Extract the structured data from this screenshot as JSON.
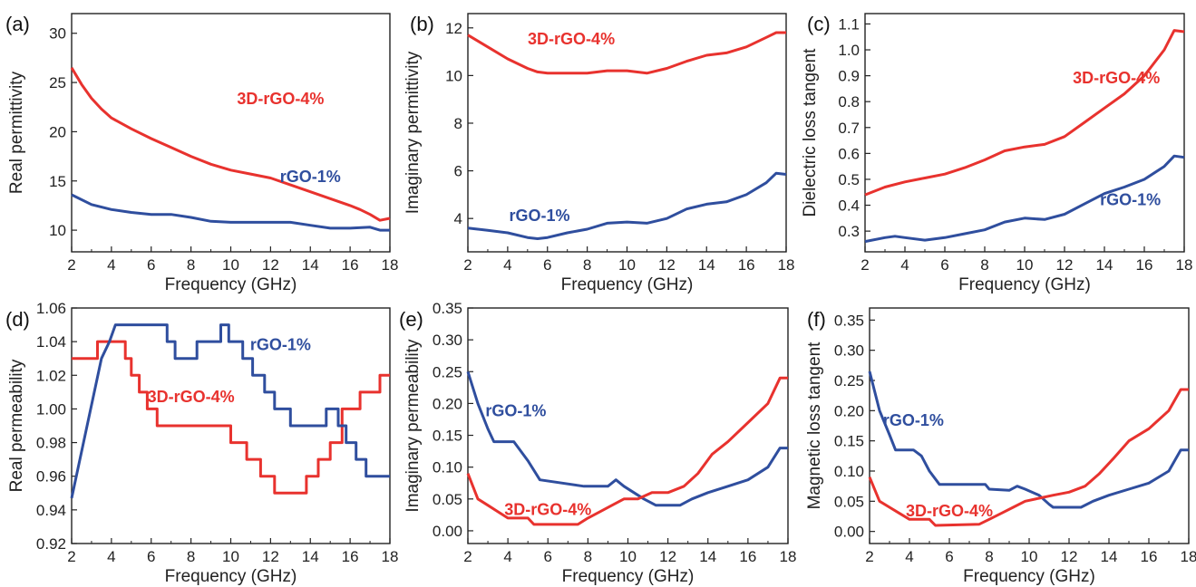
{
  "colors": {
    "red": "#e8322e",
    "blue": "#2f4e9e",
    "axis": "#222222"
  },
  "chart_data": [
    {
      "type": "line",
      "panel": "(a)",
      "xlabel": "Frequency (GHz)",
      "ylabel": "Real permittivity",
      "xlim": [
        2,
        18
      ],
      "ylim": [
        7.8,
        32
      ],
      "xticks": [
        2,
        4,
        6,
        8,
        10,
        12,
        14,
        16,
        18
      ],
      "xtick_labels": [
        "2",
        "4",
        "6",
        "8",
        "10",
        "12",
        "14",
        "16",
        "18"
      ],
      "yticks": [
        10,
        15,
        20,
        25,
        30
      ],
      "ytick_labels": [
        "10",
        "15",
        "20",
        "25",
        "30"
      ],
      "series": [
        {
          "name": "3D-rGO-4%",
          "color": "#e8322e",
          "x": [
            2,
            2.5,
            3,
            3.5,
            4,
            5,
            6,
            7,
            8,
            9,
            10,
            11,
            12,
            13,
            14,
            15,
            16,
            16.5,
            17,
            17.5,
            18
          ],
          "y": [
            26.5,
            24.8,
            23.4,
            22.3,
            21.4,
            20.3,
            19.3,
            18.4,
            17.5,
            16.7,
            16.1,
            15.7,
            15.3,
            14.6,
            13.9,
            13.2,
            12.5,
            12.1,
            11.6,
            11.0,
            11.2
          ]
        },
        {
          "name": "rGO-1%",
          "color": "#2f4e9e",
          "x": [
            2,
            3,
            4,
            5,
            6,
            7,
            8,
            9,
            10,
            11,
            12,
            13,
            14,
            15,
            16,
            17,
            17.5,
            18
          ],
          "y": [
            13.6,
            12.6,
            12.1,
            11.8,
            11.6,
            11.6,
            11.3,
            10.9,
            10.8,
            10.8,
            10.8,
            10.8,
            10.5,
            10.2,
            10.2,
            10.3,
            10.0,
            10.0
          ]
        }
      ]
    },
    {
      "type": "line",
      "panel": "(b)",
      "xlabel": "Frequency (GHz)",
      "ylabel": "Imaginary permittivity",
      "xlim": [
        2,
        18
      ],
      "ylim": [
        2.6,
        12.6
      ],
      "xticks": [
        2,
        4,
        6,
        8,
        10,
        12,
        14,
        16,
        18
      ],
      "xtick_labels": [
        "2",
        "4",
        "6",
        "8",
        "10",
        "12",
        "14",
        "16",
        "18"
      ],
      "yticks": [
        4,
        6,
        8,
        10,
        12
      ],
      "ytick_labels": [
        "4",
        "6",
        "8",
        "10",
        "12"
      ],
      "series": [
        {
          "name": "3D-rGO-4%",
          "color": "#e8322e",
          "x": [
            2,
            3,
            4,
            5,
            5.5,
            6,
            7,
            8,
            9,
            10,
            11,
            12,
            13,
            14,
            15,
            16,
            17,
            17.5,
            18
          ],
          "y": [
            11.7,
            11.2,
            10.7,
            10.3,
            10.15,
            10.1,
            10.1,
            10.1,
            10.2,
            10.2,
            10.1,
            10.3,
            10.6,
            10.85,
            10.95,
            11.2,
            11.6,
            11.8,
            11.8
          ]
        },
        {
          "name": "rGO-1%",
          "color": "#2f4e9e",
          "x": [
            2,
            3,
            4,
            5,
            5.5,
            6,
            7,
            8,
            9,
            10,
            11,
            12,
            13,
            14,
            15,
            16,
            17,
            17.5,
            18
          ],
          "y": [
            3.6,
            3.5,
            3.4,
            3.2,
            3.15,
            3.2,
            3.4,
            3.55,
            3.8,
            3.85,
            3.8,
            4.0,
            4.4,
            4.6,
            4.7,
            5.0,
            5.5,
            5.9,
            5.85
          ]
        }
      ]
    },
    {
      "type": "line",
      "panel": "(c)",
      "xlabel": "Frequency (GHz)",
      "ylabel": "Dielectric loss tangent",
      "xlim": [
        2,
        18
      ],
      "ylim": [
        0.22,
        1.14
      ],
      "xticks": [
        2,
        4,
        6,
        8,
        10,
        12,
        14,
        16,
        18
      ],
      "xtick_labels": [
        "2",
        "4",
        "6",
        "8",
        "10",
        "12",
        "14",
        "16",
        "18"
      ],
      "yticks": [
        0.3,
        0.4,
        0.5,
        0.6,
        0.7,
        0.8,
        0.9,
        1.0,
        1.1
      ],
      "ytick_labels": [
        "0.3",
        "0.4",
        "0.5",
        "0.6",
        "0.7",
        "0.8",
        "0.9",
        "1.0",
        "1.1"
      ],
      "series": [
        {
          "name": "3D-rGO-4%",
          "color": "#e8322e",
          "x": [
            2,
            3,
            4,
            5,
            6,
            7,
            8,
            9,
            10,
            11,
            12,
            13,
            14,
            15,
            16,
            17,
            17.5,
            18
          ],
          "y": [
            0.44,
            0.47,
            0.49,
            0.505,
            0.52,
            0.545,
            0.575,
            0.61,
            0.625,
            0.635,
            0.665,
            0.72,
            0.775,
            0.83,
            0.9,
            1.0,
            1.075,
            1.07
          ]
        },
        {
          "name": "rGO-1%",
          "color": "#2f4e9e",
          "x": [
            2,
            3,
            3.5,
            4,
            5,
            6,
            7,
            8,
            9,
            10,
            11,
            12,
            13,
            14,
            15,
            16,
            17,
            17.5,
            18
          ],
          "y": [
            0.26,
            0.275,
            0.28,
            0.275,
            0.265,
            0.275,
            0.29,
            0.305,
            0.335,
            0.35,
            0.345,
            0.365,
            0.405,
            0.445,
            0.47,
            0.5,
            0.55,
            0.59,
            0.585
          ]
        }
      ]
    },
    {
      "type": "line",
      "panel": "(d)",
      "xlabel": "Frequency (GHz)",
      "ylabel": "Real permeability",
      "xlim": [
        2,
        18
      ],
      "ylim": [
        0.92,
        1.06
      ],
      "xticks": [
        2,
        4,
        6,
        8,
        10,
        12,
        14,
        16,
        18
      ],
      "xtick_labels": [
        "2",
        "4",
        "6",
        "8",
        "10",
        "12",
        "14",
        "16",
        "18"
      ],
      "yticks": [
        0.92,
        0.94,
        0.96,
        0.98,
        1.0,
        1.02,
        1.04,
        1.06
      ],
      "ytick_labels": [
        "0.92",
        "0.94",
        "0.96",
        "0.98",
        "1.00",
        "1.02",
        "1.04",
        "1.06"
      ],
      "series": [
        {
          "name": "3D-rGO-4%",
          "color": "#e8322e",
          "x": [
            2,
            3.3,
            3.3,
            4.7,
            4.7,
            5.0,
            5.0,
            5.4,
            5.4,
            5.8,
            5.8,
            6.3,
            6.3,
            6.8,
            6.8,
            10.0,
            10.0,
            10.8,
            10.8,
            11.5,
            11.5,
            12.2,
            12.2,
            12.5,
            12.5,
            13.8,
            13.8,
            14.4,
            14.4,
            15.0,
            15.0,
            15.6,
            15.6,
            16.5,
            16.5,
            17.5,
            17.5,
            18
          ],
          "y": [
            1.03,
            1.03,
            1.04,
            1.04,
            1.03,
            1.03,
            1.02,
            1.02,
            1.01,
            1.01,
            1.0,
            1.0,
            0.99,
            0.99,
            0.99,
            0.99,
            0.98,
            0.98,
            0.97,
            0.97,
            0.96,
            0.96,
            0.95,
            0.95,
            0.95,
            0.95,
            0.96,
            0.96,
            0.97,
            0.97,
            0.98,
            0.98,
            1.0,
            1.0,
            1.01,
            1.01,
            1.02,
            1.02
          ]
        },
        {
          "name": "rGO-1%",
          "color": "#2f4e9e",
          "x": [
            2,
            3.5,
            3.5,
            3.9,
            3.9,
            4.2,
            4.2,
            6.8,
            6.8,
            7.2,
            7.2,
            8.3,
            8.3,
            8.8,
            8.8,
            9.5,
            9.5,
            9.9,
            9.9,
            10.6,
            10.6,
            11.1,
            11.1,
            11.7,
            11.7,
            12.2,
            12.2,
            13.0,
            13.0,
            14.8,
            14.8,
            15.4,
            15.4,
            15.8,
            15.8,
            16.3,
            16.3,
            16.8,
            16.8,
            17.2,
            17.2,
            18
          ],
          "y": [
            0.947,
            1.03,
            1.03,
            1.04,
            1.04,
            1.05,
            1.05,
            1.05,
            1.04,
            1.04,
            1.03,
            1.03,
            1.04,
            1.04,
            1.04,
            1.04,
            1.05,
            1.05,
            1.04,
            1.04,
            1.03,
            1.03,
            1.02,
            1.02,
            1.01,
            1.01,
            1.0,
            1.0,
            0.99,
            0.99,
            1.0,
            1.0,
            0.99,
            0.99,
            0.98,
            0.98,
            0.97,
            0.97,
            0.96,
            0.96,
            0.96,
            0.96
          ]
        }
      ]
    },
    {
      "type": "line",
      "panel": "(e)",
      "xlabel": "Frequency (GHz)",
      "ylabel": "Imaginary permeability",
      "xlim": [
        2,
        18
      ],
      "ylim": [
        -0.02,
        0.35
      ],
      "xticks": [
        2,
        4,
        6,
        8,
        10,
        12,
        14,
        16,
        18
      ],
      "xtick_labels": [
        "2",
        "4",
        "6",
        "8",
        "10",
        "12",
        "14",
        "16",
        "18"
      ],
      "yticks": [
        0.0,
        0.05,
        0.1,
        0.15,
        0.2,
        0.25,
        0.3,
        0.35
      ],
      "ytick_labels": [
        "0.00",
        "0.05",
        "0.10",
        "0.15",
        "0.20",
        "0.25",
        "0.30",
        "0.35"
      ],
      "series": [
        {
          "name": "rGO-1%",
          "color": "#2f4e9e",
          "x": [
            2,
            2.5,
            3.0,
            3.3,
            4.3,
            5.0,
            5.6,
            7.8,
            9.0,
            9.4,
            9.8,
            10.8,
            11.4,
            12.6,
            13.2,
            14,
            15,
            16,
            17,
            17.6,
            18
          ],
          "y": [
            0.25,
            0.2,
            0.16,
            0.14,
            0.14,
            0.11,
            0.08,
            0.07,
            0.07,
            0.08,
            0.07,
            0.05,
            0.04,
            0.04,
            0.05,
            0.06,
            0.07,
            0.08,
            0.1,
            0.13,
            0.13
          ]
        },
        {
          "name": "3D-rGO-4%",
          "color": "#e8322e",
          "x": [
            2,
            2.5,
            3.0,
            3.5,
            4.0,
            5.0,
            5.3,
            7.5,
            8.0,
            8.6,
            9.2,
            9.8,
            10.5,
            11.2,
            12.0,
            12.8,
            13.5,
            14.2,
            15,
            16,
            17,
            17.6,
            18
          ],
          "y": [
            0.09,
            0.05,
            0.04,
            0.03,
            0.02,
            0.02,
            0.01,
            0.01,
            0.02,
            0.03,
            0.04,
            0.05,
            0.05,
            0.06,
            0.06,
            0.07,
            0.09,
            0.12,
            0.14,
            0.17,
            0.2,
            0.24,
            0.24
          ]
        }
      ]
    },
    {
      "type": "line",
      "panel": "(f)",
      "xlabel": "Frequency (GHz)",
      "ylabel": "Magnetic loss tangent",
      "xlim": [
        2,
        18
      ],
      "ylim": [
        -0.02,
        0.37
      ],
      "xticks": [
        2,
        4,
        6,
        8,
        10,
        12,
        14,
        16,
        18
      ],
      "xtick_labels": [
        "2",
        "4",
        "6",
        "8",
        "10",
        "12",
        "14",
        "16",
        "18"
      ],
      "yticks": [
        0.0,
        0.05,
        0.1,
        0.15,
        0.2,
        0.25,
        0.3,
        0.35
      ],
      "ytick_labels": [
        "0.00",
        "0.05",
        "0.10",
        "0.15",
        "0.20",
        "0.25",
        "0.30",
        "0.35"
      ],
      "series": [
        {
          "name": "rGO-1%",
          "color": "#2f4e9e",
          "x": [
            2,
            2.5,
            3.0,
            3.3,
            4.2,
            4.6,
            5.0,
            5.5,
            7.8,
            8.0,
            9.0,
            9.4,
            9.8,
            10.5,
            11.0,
            11.2,
            12.6,
            13.2,
            14,
            15,
            16,
            17,
            17.6,
            18
          ],
          "y": [
            0.265,
            0.2,
            0.16,
            0.135,
            0.135,
            0.125,
            0.1,
            0.078,
            0.078,
            0.07,
            0.068,
            0.075,
            0.07,
            0.06,
            0.045,
            0.04,
            0.04,
            0.05,
            0.06,
            0.07,
            0.08,
            0.1,
            0.135,
            0.135
          ]
        },
        {
          "name": "3D-rGO-4%",
          "color": "#e8322e",
          "x": [
            2,
            2.5,
            3.0,
            3.5,
            4.0,
            5.0,
            5.3,
            7.5,
            8.0,
            8.6,
            9.2,
            9.8,
            10.5,
            11.2,
            12.0,
            12.8,
            13.5,
            14.2,
            15,
            16,
            17,
            17.6,
            18
          ],
          "y": [
            0.09,
            0.05,
            0.04,
            0.03,
            0.02,
            0.02,
            0.01,
            0.012,
            0.02,
            0.03,
            0.04,
            0.05,
            0.055,
            0.06,
            0.065,
            0.075,
            0.095,
            0.12,
            0.15,
            0.17,
            0.2,
            0.235,
            0.235
          ]
        }
      ]
    }
  ]
}
